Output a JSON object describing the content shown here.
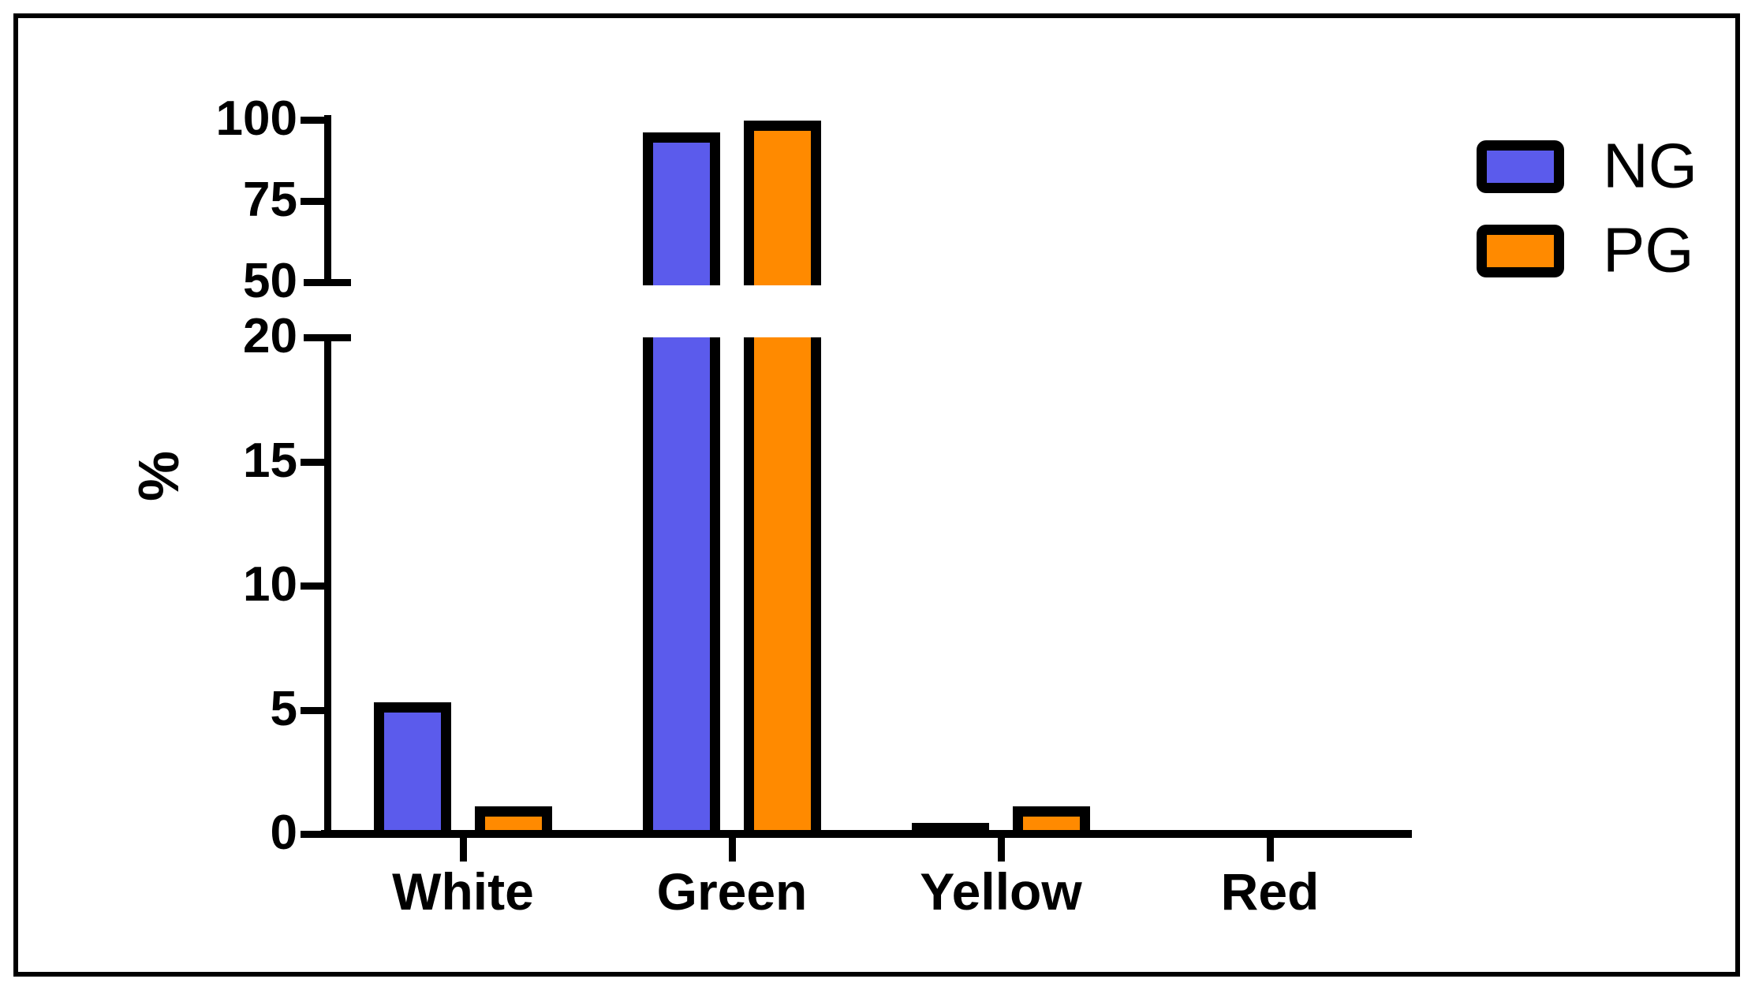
{
  "chart_data": {
    "type": "bar",
    "title": "",
    "xlabel": "",
    "ylabel": "%",
    "categories": [
      "White",
      "Green",
      "Yellow",
      "Red"
    ],
    "series": [
      {
        "name": "NG",
        "color": "#5b5bec",
        "values": [
          5.3,
          96.0,
          0.45,
          0
        ]
      },
      {
        "name": "PG",
        "color": "#ff8a00",
        "values": [
          1.1,
          99.7,
          1.1,
          0
        ]
      }
    ],
    "y_axis": {
      "broken": true,
      "lower_segment": {
        "range": [
          0,
          20
        ],
        "ticks": [
          0,
          5,
          10,
          15,
          20
        ]
      },
      "upper_segment": {
        "range": [
          50,
          100
        ],
        "ticks": [
          50,
          75,
          100
        ]
      },
      "break_between": [
        20,
        50
      ]
    },
    "bar_outline_color": "#000000",
    "axis_color": "#000000",
    "legend_position": "top-right",
    "grid": false
  },
  "legend": {
    "items": [
      {
        "label": "NG",
        "color": "#5b5bec"
      },
      {
        "label": "PG",
        "color": "#ff8a00"
      }
    ]
  }
}
